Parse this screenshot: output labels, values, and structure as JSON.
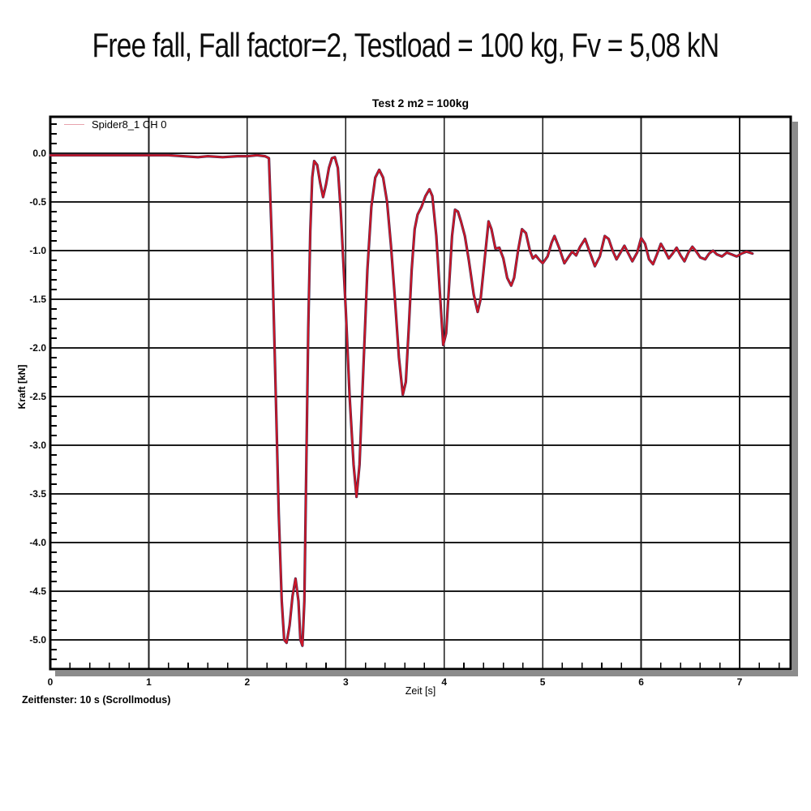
{
  "page": {
    "title": "Free fall, Fall factor=2,  Testload = 100 kg, Fv = 5,08 kN",
    "footer": "Zeitfenster: 10 s (Scrollmodus)"
  },
  "colors": {
    "curve": "#cf1626",
    "curve_core": "#3a2a55",
    "legend_sample": "#e8a3ad",
    "grid": "#1c1c1c",
    "frame": "#000000",
    "shadow": "#8c8c8c",
    "background": "#ffffff"
  },
  "chart_data": {
    "type": "line",
    "title": "Test 2 m2 = 100kg",
    "xlabel": "Zeit [s]",
    "ylabel": "Kraft [kN]",
    "legend_label": "Spider8_1 CH 0",
    "legend_position": "top-left-inside",
    "grid": true,
    "xlim": [
      0,
      7.52
    ],
    "ylim": [
      -5.3,
      0.38
    ],
    "x_minor_step": 0.2,
    "y_minor_step": 0.1,
    "x_ticks": [
      {
        "label": "0",
        "value": 0
      },
      {
        "label": "1",
        "value": 1
      },
      {
        "label": "2",
        "value": 2
      },
      {
        "label": "3",
        "value": 3
      },
      {
        "label": "4",
        "value": 4
      },
      {
        "label": "5",
        "value": 5
      },
      {
        "label": "6",
        "value": 6
      },
      {
        "label": "7",
        "value": 7
      }
    ],
    "y_ticks": [
      {
        "label": "0.0",
        "value": 0.0
      },
      {
        "label": "-0.5",
        "value": -0.5
      },
      {
        "label": "-1.0",
        "value": -1.0
      },
      {
        "label": "-1.5",
        "value": -1.5
      },
      {
        "label": "-2.0",
        "value": -2.0
      },
      {
        "label": "-2.5",
        "value": -2.5
      },
      {
        "label": "-3.0",
        "value": -3.0
      },
      {
        "label": "-3.5",
        "value": -3.5
      },
      {
        "label": "-4.0",
        "value": -4.0
      },
      {
        "label": "-4.5",
        "value": -4.5
      },
      {
        "label": "-5.0",
        "value": -5.0
      }
    ],
    "series": [
      {
        "name": "Spider8_1 CH 0",
        "color": "#cf1626",
        "points": [
          [
            0,
            -0.02
          ],
          [
            0.3,
            -0.02
          ],
          [
            0.6,
            -0.02
          ],
          [
            0.9,
            -0.02
          ],
          [
            1.2,
            -0.02
          ],
          [
            1.35,
            -0.03
          ],
          [
            1.5,
            -0.04
          ],
          [
            1.6,
            -0.03
          ],
          [
            1.75,
            -0.04
          ],
          [
            1.9,
            -0.03
          ],
          [
            2.0,
            -0.03
          ],
          [
            2.1,
            -0.02
          ],
          [
            2.18,
            -0.03
          ],
          [
            2.22,
            -0.05
          ],
          [
            2.25,
            -0.9
          ],
          [
            2.29,
            -2.5
          ],
          [
            2.32,
            -3.7
          ],
          [
            2.35,
            -4.6
          ],
          [
            2.375,
            -5.0
          ],
          [
            2.4,
            -5.03
          ],
          [
            2.43,
            -4.85
          ],
          [
            2.46,
            -4.55
          ],
          [
            2.49,
            -4.37
          ],
          [
            2.52,
            -4.6
          ],
          [
            2.54,
            -5.0
          ],
          [
            2.56,
            -5.06
          ],
          [
            2.58,
            -4.6
          ],
          [
            2.6,
            -3.2
          ],
          [
            2.62,
            -1.8
          ],
          [
            2.64,
            -0.8
          ],
          [
            2.66,
            -0.25
          ],
          [
            2.68,
            -0.08
          ],
          [
            2.71,
            -0.12
          ],
          [
            2.74,
            -0.3
          ],
          [
            2.77,
            -0.45
          ],
          [
            2.8,
            -0.32
          ],
          [
            2.83,
            -0.15
          ],
          [
            2.86,
            -0.05
          ],
          [
            2.89,
            -0.04
          ],
          [
            2.92,
            -0.15
          ],
          [
            2.95,
            -0.6
          ],
          [
            3.0,
            -1.6
          ],
          [
            3.04,
            -2.5
          ],
          [
            3.08,
            -3.2
          ],
          [
            3.11,
            -3.53
          ],
          [
            3.14,
            -3.2
          ],
          [
            3.18,
            -2.2
          ],
          [
            3.22,
            -1.2
          ],
          [
            3.26,
            -0.55
          ],
          [
            3.3,
            -0.25
          ],
          [
            3.34,
            -0.17
          ],
          [
            3.38,
            -0.25
          ],
          [
            3.42,
            -0.5
          ],
          [
            3.46,
            -0.95
          ],
          [
            3.5,
            -1.5
          ],
          [
            3.54,
            -2.1
          ],
          [
            3.58,
            -2.48
          ],
          [
            3.61,
            -2.35
          ],
          [
            3.64,
            -1.8
          ],
          [
            3.67,
            -1.2
          ],
          [
            3.7,
            -0.78
          ],
          [
            3.73,
            -0.63
          ],
          [
            3.77,
            -0.55
          ],
          [
            3.81,
            -0.44
          ],
          [
            3.85,
            -0.37
          ],
          [
            3.88,
            -0.44
          ],
          [
            3.92,
            -0.85
          ],
          [
            3.96,
            -1.5
          ],
          [
            3.99,
            -1.97
          ],
          [
            4.02,
            -1.85
          ],
          [
            4.05,
            -1.35
          ],
          [
            4.08,
            -0.85
          ],
          [
            4.11,
            -0.58
          ],
          [
            4.14,
            -0.6
          ],
          [
            4.17,
            -0.7
          ],
          [
            4.21,
            -0.85
          ],
          [
            4.25,
            -1.1
          ],
          [
            4.3,
            -1.45
          ],
          [
            4.34,
            -1.63
          ],
          [
            4.37,
            -1.5
          ],
          [
            4.41,
            -1.1
          ],
          [
            4.45,
            -0.7
          ],
          [
            4.48,
            -0.78
          ],
          [
            4.52,
            -0.98
          ],
          [
            4.56,
            -0.97
          ],
          [
            4.6,
            -1.08
          ],
          [
            4.64,
            -1.28
          ],
          [
            4.68,
            -1.36
          ],
          [
            4.71,
            -1.28
          ],
          [
            4.75,
            -1.0
          ],
          [
            4.79,
            -0.78
          ],
          [
            4.83,
            -0.82
          ],
          [
            4.87,
            -1.0
          ],
          [
            4.9,
            -1.08
          ],
          [
            4.93,
            -1.05
          ],
          [
            4.97,
            -1.1
          ],
          [
            5.0,
            -1.13
          ],
          [
            5.05,
            -1.06
          ],
          [
            5.09,
            -0.92
          ],
          [
            5.12,
            -0.85
          ],
          [
            5.17,
            -0.98
          ],
          [
            5.22,
            -1.13
          ],
          [
            5.26,
            -1.07
          ],
          [
            5.3,
            -1.01
          ],
          [
            5.34,
            -1.05
          ],
          [
            5.38,
            -0.96
          ],
          [
            5.43,
            -0.88
          ],
          [
            5.48,
            -1.02
          ],
          [
            5.53,
            -1.16
          ],
          [
            5.58,
            -1.06
          ],
          [
            5.63,
            -0.85
          ],
          [
            5.67,
            -0.88
          ],
          [
            5.71,
            -1.0
          ],
          [
            5.75,
            -1.09
          ],
          [
            5.79,
            -1.02
          ],
          [
            5.83,
            -0.95
          ],
          [
            5.87,
            -1.03
          ],
          [
            5.91,
            -1.11
          ],
          [
            5.96,
            -1.02
          ],
          [
            6.0,
            -0.87
          ],
          [
            6.04,
            -0.93
          ],
          [
            6.08,
            -1.09
          ],
          [
            6.12,
            -1.14
          ],
          [
            6.16,
            -1.04
          ],
          [
            6.2,
            -0.93
          ],
          [
            6.24,
            -1.0
          ],
          [
            6.28,
            -1.08
          ],
          [
            6.32,
            -1.03
          ],
          [
            6.36,
            -0.97
          ],
          [
            6.4,
            -1.05
          ],
          [
            6.44,
            -1.11
          ],
          [
            6.48,
            -1.02
          ],
          [
            6.52,
            -0.96
          ],
          [
            6.56,
            -1.01
          ],
          [
            6.6,
            -1.07
          ],
          [
            6.65,
            -1.09
          ],
          [
            6.69,
            -1.03
          ],
          [
            6.73,
            -1.0
          ],
          [
            6.77,
            -1.04
          ],
          [
            6.82,
            -1.06
          ],
          [
            6.87,
            -1.02
          ],
          [
            6.92,
            -1.04
          ],
          [
            6.97,
            -1.06
          ],
          [
            7.02,
            -1.03
          ],
          [
            7.07,
            -1.01
          ],
          [
            7.13,
            -1.03
          ]
        ]
      }
    ]
  }
}
